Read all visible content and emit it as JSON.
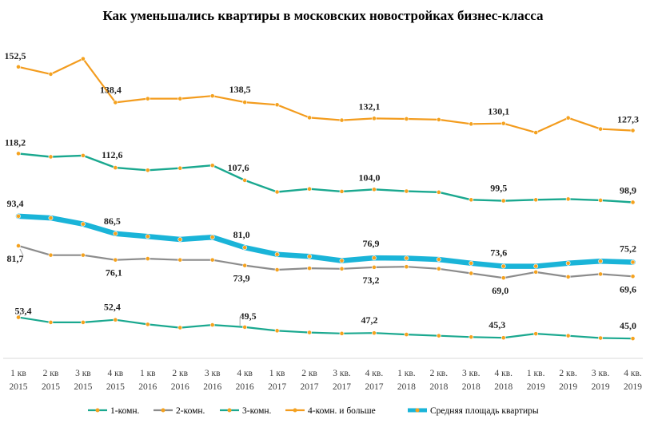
{
  "chart_data": {
    "type": "line",
    "title": "Как уменьшались квартиры в московских новостройках бизнес-класса",
    "categories": [
      [
        "1 кв",
        "2015"
      ],
      [
        "2 кв",
        "2015"
      ],
      [
        "3 кв",
        "2015"
      ],
      [
        "4 кв",
        "2015"
      ],
      [
        "1 кв",
        "2016"
      ],
      [
        "2 кв",
        "2016"
      ],
      [
        "3 кв",
        "2016"
      ],
      [
        "4 кв",
        "2016"
      ],
      [
        "1 кв",
        "2017"
      ],
      [
        "2 кв",
        "2017"
      ],
      [
        "3 кв.",
        "2017"
      ],
      [
        "4 кв.",
        "2017"
      ],
      [
        "1 кв.",
        "2018"
      ],
      [
        "2 кв.",
        "2018"
      ],
      [
        "3 кв.",
        "2018"
      ],
      [
        "4 кв.",
        "2018"
      ],
      [
        "1 кв.",
        "2019"
      ],
      [
        "2 кв.",
        "2019"
      ],
      [
        "3 кв.",
        "2019"
      ],
      [
        "4 кв.",
        "2019"
      ]
    ],
    "ylim": [
      40,
      160
    ],
    "grid": false,
    "legend_position": "bottom",
    "series": [
      {
        "key": "k1",
        "name": "1-комн.",
        "color": "#1aa88f",
        "width": 2.2,
        "marker": "#f4a21f",
        "values": [
          53.4,
          51.4,
          51.4,
          52.4,
          50.6,
          49.3,
          50.4,
          49.5,
          48.1,
          47.4,
          47.0,
          47.2,
          46.6,
          46.1,
          45.6,
          45.3,
          46.9,
          46.1,
          45.2,
          45.0
        ],
        "labels": {
          "0": "53,4",
          "3": "52,4",
          "7": "49,5",
          "11": "47,2",
          "15": "45,3",
          "19": "45,0"
        }
      },
      {
        "key": "k2",
        "name": "2-комн.",
        "color": "#8c8c8c",
        "width": 2.2,
        "marker": "#f4a21f",
        "values": [
          81.7,
          78.0,
          78.0,
          76.1,
          76.6,
          76.1,
          76.1,
          73.9,
          72.2,
          72.8,
          72.6,
          73.2,
          73.4,
          72.6,
          70.8,
          69.0,
          71.3,
          69.4,
          70.5,
          69.6
        ],
        "labels": {
          "0": "81,7",
          "3": "76,1",
          "7": "73,9",
          "11": "73,2",
          "15": "69,0",
          "19": "69,6"
        }
      },
      {
        "key": "k3",
        "name": "3-комн.",
        "color": "#1aa88f",
        "width": 2.4,
        "marker": "#f4a21f",
        "values": [
          118.2,
          116.9,
          117.4,
          112.6,
          111.6,
          112.4,
          113.5,
          107.6,
          103.0,
          104.2,
          103.2,
          104.0,
          103.3,
          102.9,
          99.9,
          99.5,
          99.9,
          100.2,
          99.7,
          98.9
        ],
        "labels": {
          "0": "118,2",
          "3": "112,6",
          "7": "107,6",
          "11": "104,0",
          "15": "99,5",
          "19": "98,9"
        }
      },
      {
        "key": "k4",
        "name": "4-комн. и больше",
        "color": "#f39c1e",
        "width": 2.2,
        "marker": "#f4a21f",
        "values": [
          152.5,
          149.6,
          155.7,
          138.4,
          139.9,
          139.9,
          141.0,
          138.5,
          137.5,
          132.4,
          131.4,
          132.1,
          131.9,
          131.6,
          129.9,
          130.1,
          126.5,
          132.3,
          127.9,
          127.3
        ],
        "labels": {
          "0": "152,5",
          "3": "138,4",
          "7": "138,5",
          "11": "132,1",
          "15": "130,1",
          "19": "127,3"
        }
      },
      {
        "key": "avg",
        "name": "Средняя площадь квартиры",
        "color": "#1ab4d8",
        "width": 6.5,
        "marker": "#f4a21f",
        "values": [
          93.4,
          92.7,
          90.3,
          86.5,
          85.4,
          84.2,
          85.1,
          81.0,
          78.3,
          77.5,
          75.8,
          76.9,
          76.8,
          76.3,
          74.8,
          73.6,
          73.6,
          74.8,
          75.6,
          75.2
        ],
        "labels": {
          "0": "93,4",
          "3": "86,5",
          "7": "81,0",
          "11": "76,9",
          "15": "73,6",
          "19": "75,2"
        }
      }
    ],
    "legend_order": [
      "k1",
      "k2",
      "k3",
      "k4",
      "avg"
    ]
  }
}
